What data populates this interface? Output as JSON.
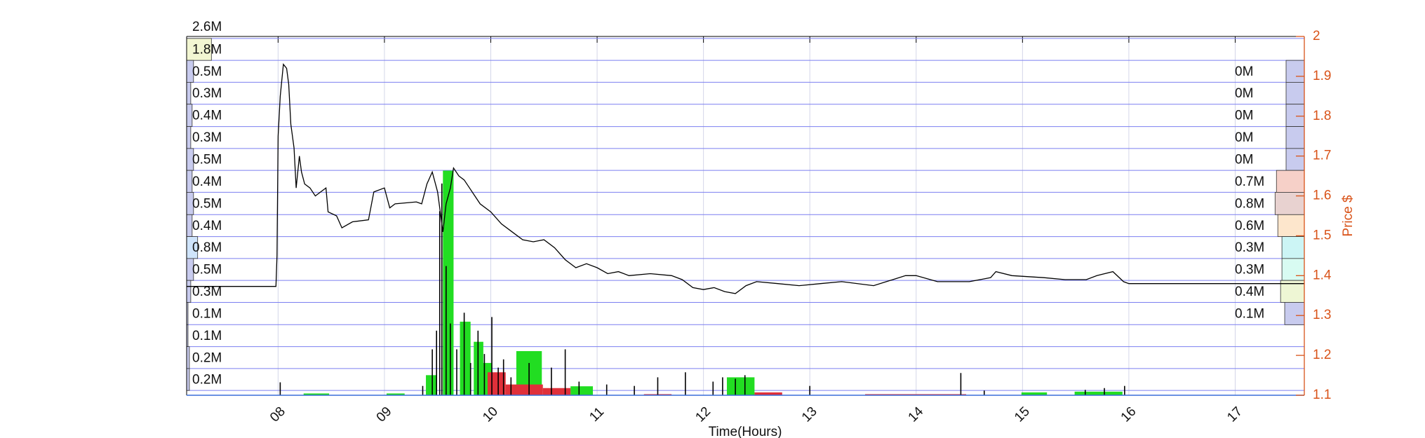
{
  "chart_data": {
    "type": "price-volume",
    "xlabel": "Time(Hours)",
    "ylabel": "Price $",
    "xlim": [
      7.14,
      17.65
    ],
    "xticks": [
      {
        "value": 8,
        "label": "08"
      },
      {
        "value": 9,
        "label": "09"
      },
      10,
      11,
      12,
      13,
      14,
      15,
      16,
      17
    ],
    "ylim": [
      1.1,
      2
    ],
    "yticks": [
      1.1,
      1.2,
      1.3,
      1.4,
      1.5,
      1.6,
      1.7,
      1.8,
      1.9,
      2
    ],
    "grid": true,
    "price": {
      "color": "#000000",
      "x": [
        7.14,
        7.98,
        7.99,
        8.0,
        8.02,
        8.05,
        8.08,
        8.1,
        8.12,
        8.15,
        8.17,
        8.2,
        8.22,
        8.25,
        8.3,
        8.35,
        8.4,
        8.45,
        8.47,
        8.55,
        8.6,
        8.7,
        8.85,
        8.9,
        9.0,
        9.05,
        9.1,
        9.3,
        9.35,
        9.4,
        9.45,
        9.5,
        9.55,
        9.58,
        9.62,
        9.65,
        9.7,
        9.75,
        9.8,
        9.85,
        9.9,
        10.0,
        10.1,
        10.2,
        10.3,
        10.4,
        10.5,
        10.6,
        10.7,
        10.8,
        10.9,
        11.0,
        11.1,
        11.2,
        11.3,
        11.5,
        11.7,
        11.8,
        11.9,
        12.0,
        12.1,
        12.2,
        12.3,
        12.4,
        12.5,
        12.7,
        12.9,
        13.1,
        13.3,
        13.6,
        13.9,
        14.0,
        14.2,
        14.5,
        14.7,
        14.75,
        14.9,
        15.2,
        15.4,
        15.6,
        15.7,
        15.85,
        15.95,
        16.0,
        17.65
      ],
      "values": [
        1.373,
        1.373,
        1.45,
        1.75,
        1.85,
        1.93,
        1.92,
        1.88,
        1.78,
        1.72,
        1.62,
        1.7,
        1.66,
        1.63,
        1.62,
        1.6,
        1.61,
        1.62,
        1.56,
        1.55,
        1.52,
        1.535,
        1.54,
        1.61,
        1.62,
        1.57,
        1.58,
        1.585,
        1.58,
        1.63,
        1.66,
        1.61,
        1.51,
        1.58,
        1.62,
        1.67,
        1.65,
        1.64,
        1.62,
        1.6,
        1.58,
        1.56,
        1.53,
        1.51,
        1.49,
        1.485,
        1.49,
        1.47,
        1.44,
        1.42,
        1.43,
        1.42,
        1.405,
        1.41,
        1.4,
        1.405,
        1.4,
        1.39,
        1.37,
        1.365,
        1.37,
        1.36,
        1.355,
        1.375,
        1.385,
        1.38,
        1.375,
        1.38,
        1.385,
        1.375,
        1.4,
        1.4,
        1.385,
        1.385,
        1.395,
        1.41,
        1.4,
        1.395,
        1.39,
        1.39,
        1.4,
        1.41,
        1.385,
        1.38,
        1.38
      ]
    },
    "volume_lim": [
      0,
      100
    ],
    "volume_bars": [
      {
        "color": "#22dd22",
        "x_start": [
          8.24,
          9.02,
          9.39,
          9.55,
          9.71,
          9.84,
          9.88,
          10.24,
          10.75,
          12.22,
          14.99,
          15.49
        ],
        "x_end": [
          8.48,
          9.19,
          9.49,
          9.65,
          9.81,
          9.93,
          10.01,
          10.48,
          10.96,
          12.48,
          15.23,
          15.94
        ],
        "values": [
          0.5,
          0.5,
          5.6,
          62.6,
          20.5,
          14.9,
          9,
          12.3,
          2.5,
          5,
          0.8,
          1
        ]
      },
      {
        "color": "#e0303a",
        "x_start": [
          9.97,
          10.14,
          10.49,
          11.44,
          12.48,
          13.52
        ],
        "x_end": [
          10.14,
          10.49,
          10.75,
          11.7,
          12.74,
          14.47
        ],
        "values": [
          6.4,
          3,
          2,
          0.3,
          0.8,
          0.3
        ]
      }
    ],
    "volume_spikes": {
      "color": "#000000",
      "x": [
        8.02,
        9.36,
        9.45,
        9.49,
        9.52,
        9.54,
        9.58,
        9.62,
        9.68,
        9.75,
        9.81,
        9.88,
        9.94,
        10.01,
        10.07,
        10.12,
        10.19,
        10.36,
        10.57,
        10.7,
        10.83,
        11.09,
        11.35,
        11.57,
        11.83,
        12.09,
        12.18,
        12.3,
        12.39,
        13.0,
        14.42,
        14.64,
        15.59,
        15.77,
        15.96
      ],
      "values": [
        3.6,
        2.6,
        12.8,
        18,
        51.3,
        59,
        36,
        20,
        12.8,
        23,
        9,
        18,
        11.5,
        21.8,
        7.7,
        10,
        5,
        9,
        7.7,
        12.8,
        3.8,
        3,
        2.6,
        5,
        6.4,
        3.8,
        5,
        4.6,
        5.6,
        2.6,
        6.2,
        1.3,
        1.5,
        2,
        2.6
      ]
    },
    "band_edges": [
      1.995,
      1.94,
      1.885,
      1.83,
      1.774,
      1.719,
      1.664,
      1.609,
      1.553,
      1.498,
      1.443,
      1.388,
      1.333,
      1.277,
      1.222,
      1.167,
      1.112
    ],
    "bar_scale": {
      "value": 2.6,
      "label": "2.6M"
    },
    "left_profile": {
      "values": [
        1.8,
        0.5,
        0.3,
        0.4,
        0.3,
        0.5,
        0.4,
        0.5,
        0.4,
        0.8,
        0.5,
        0.3,
        0.1,
        0.1,
        0.2,
        0.2
      ],
      "value_labels": [
        "1.8M",
        "0.5M",
        "0.3M",
        "0.4M",
        "0.3M",
        "0.5M",
        "0.4M",
        "0.5M",
        "0.4M",
        "0.8M",
        "0.5M",
        "0.3M",
        "0.1M",
        "0.1M",
        "0.2M",
        "0.2M"
      ],
      "colors": [
        "#f2f6d2",
        "#c8cbee",
        "#c8cbee",
        "#c8cbee",
        "#c8cbee",
        "#c8cbee",
        "#c8cbee",
        "#c8cbee",
        "#c8cbee",
        "#cfe4fb",
        "#c8cbee",
        "#c8cbee",
        "#c8cbee",
        "#c8cbee",
        "#c8cbee",
        "#c8cbee"
      ]
    },
    "right_profile": {
      "values": [
        null,
        0,
        0,
        0,
        0,
        0,
        0.7,
        0.8,
        0.6,
        0.3,
        0.3,
        0.4,
        0.1,
        null,
        null,
        null
      ],
      "value_labels": [
        null,
        "0M",
        "0M",
        "0M",
        "0M",
        "0M",
        "0.7M",
        "0.8M",
        "0.6M",
        "0.3M",
        "0.3M",
        "0.4M",
        "0.1M",
        null,
        null,
        null
      ],
      "colors": [
        null,
        "#c8cbee",
        "#c8cbee",
        "#c8cbee",
        "#c8cbee",
        "#c8cbee",
        "#f6d0c8",
        "#e8d2d0",
        "#fde6cc",
        "#ccf5f5",
        "#d8fbf2",
        "#eef6d4",
        "#c8cbee",
        null,
        null,
        null
      ]
    }
  }
}
